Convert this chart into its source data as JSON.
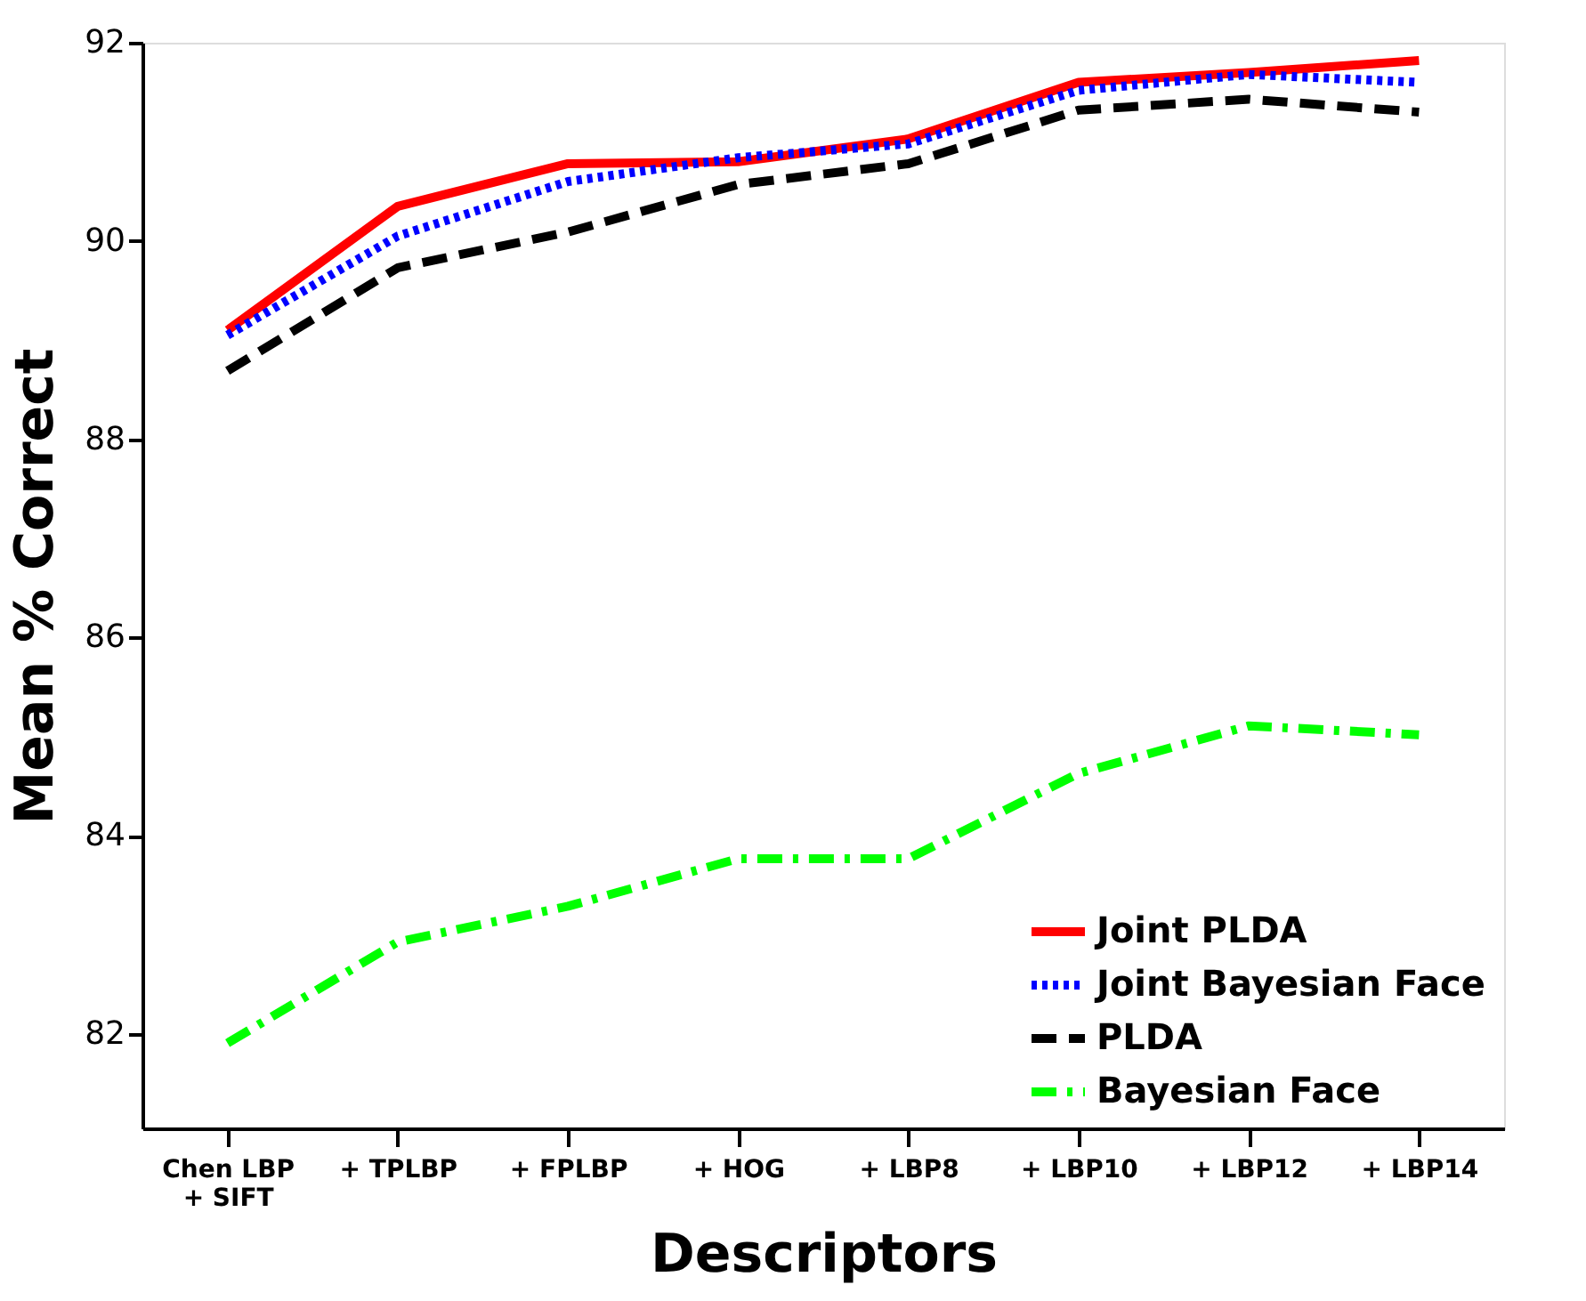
{
  "chart_data": {
    "type": "line",
    "xlabel": "Descriptors",
    "ylabel": "Mean % Correct",
    "categories": [
      "Chen LBP\n+ SIFT",
      "+ TPLBP",
      "+ FPLBP",
      "+ HOG",
      "+ LBP8",
      "+ LBP10",
      "+ LBP12",
      "+ LBP14"
    ],
    "series": [
      {
        "name": "Joint PLDA",
        "color": "#ff0000",
        "line_style": "solid",
        "values": [
          89.1,
          90.35,
          90.78,
          90.8,
          91.03,
          91.6,
          91.7,
          91.82
        ]
      },
      {
        "name": "Joint Bayesian Face",
        "color": "#0000ff",
        "line_style": "dotted",
        "values": [
          89.05,
          90.05,
          90.6,
          90.84,
          90.98,
          91.52,
          91.68,
          91.6
        ]
      },
      {
        "name": "PLDA",
        "color": "#000000",
        "line_style": "dashed",
        "values": [
          88.69,
          89.73,
          90.09,
          90.57,
          90.78,
          91.32,
          91.43,
          91.3
        ]
      },
      {
        "name": "Bayesian Face",
        "color": "#00ff00",
        "line_style": "dashdot",
        "values": [
          81.91,
          82.93,
          83.29,
          83.77,
          83.77,
          84.63,
          85.11,
          85.02
        ]
      }
    ],
    "ylim": [
      81.05,
      92
    ],
    "yticks": [
      82,
      84,
      86,
      88,
      90,
      92
    ],
    "grid": false,
    "legend": "bottom right",
    "marker": "none"
  }
}
